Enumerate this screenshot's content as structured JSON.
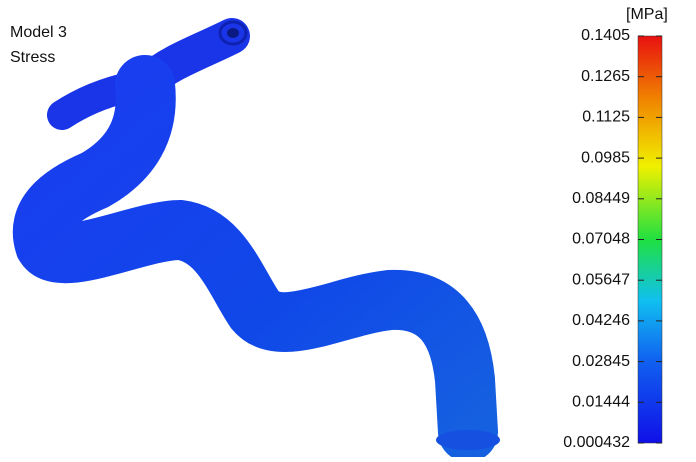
{
  "caption": {
    "model": "Model 3",
    "quantity": "Stress"
  },
  "colorbar": {
    "unit": "[MPa]",
    "ticks": [
      0.1405,
      0.1265,
      0.1125,
      0.0985,
      0.08449,
      0.07048,
      0.05647,
      0.04246,
      0.02845,
      0.01444,
      0.000432
    ]
  }
}
